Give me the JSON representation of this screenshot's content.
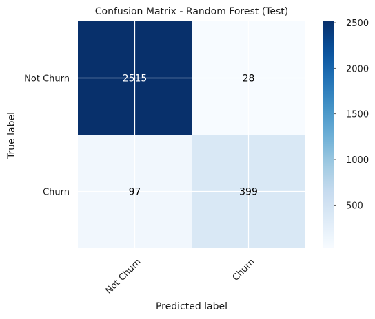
{
  "chart_data": {
    "type": "heatmap",
    "title": "Confusion Matrix - Random Forest (Test)",
    "xlabel": "Predicted label",
    "ylabel": "True label",
    "x_categories": [
      "Not Churn",
      "Churn"
    ],
    "y_categories": [
      "Not Churn",
      "Churn"
    ],
    "values": [
      [
        2515,
        28
      ],
      [
        97,
        399
      ]
    ],
    "value_labels": [
      [
        "2515",
        "28"
      ],
      [
        "97",
        "399"
      ]
    ],
    "colormap": "Blues",
    "colorbar": {
      "range": [
        28,
        2515
      ],
      "ticks": [
        500,
        1000,
        1500,
        2000,
        2500
      ],
      "tick_labels": [
        "500",
        "1000",
        "1500",
        "2000",
        "2500"
      ]
    },
    "grid": true,
    "colors": {
      "low": "#f7fbff",
      "high": "#08306b"
    }
  }
}
